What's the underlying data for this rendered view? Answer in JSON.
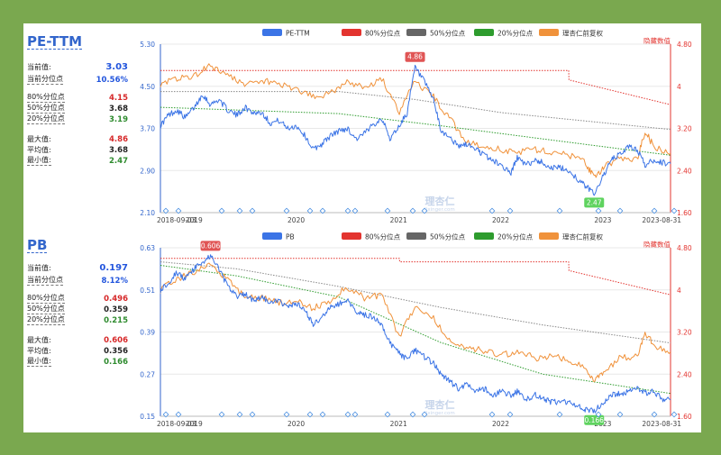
{
  "pe_panel": {
    "title": "PE-TTM",
    "stats": [
      {
        "label": "当前值:",
        "value": "3.03",
        "color": "#2255dd",
        "big": true
      },
      {
        "label": "当前分位点",
        "value": "10.56%",
        "color": "#2255dd",
        "big": false
      },
      {
        "label": "80%分位点",
        "value": "4.15",
        "color": "#d62728",
        "big": false
      },
      {
        "label": "50%分位点",
        "value": "3.68",
        "color": "#222222",
        "big": false
      },
      {
        "label": "20%分位点",
        "value": "3.19",
        "color": "#2e8b2e",
        "big": false
      },
      {
        "label": "最大值:",
        "value": "4.86",
        "color": "#d62728",
        "big": false
      },
      {
        "label": "平均值:",
        "value": "3.68",
        "color": "#222222",
        "big": false
      },
      {
        "label": "最小值:",
        "value": "2.47",
        "color": "#2e8b2e",
        "big": false
      }
    ]
  },
  "pb_panel": {
    "title": "PB",
    "stats": [
      {
        "label": "当前值:",
        "value": "0.197",
        "color": "#2255dd",
        "big": true
      },
      {
        "label": "当前分位点",
        "value": "8.12%",
        "color": "#2255dd",
        "big": false
      },
      {
        "label": "80%分位点",
        "value": "0.496",
        "color": "#d62728",
        "big": false
      },
      {
        "label": "50%分位点",
        "value": "0.359",
        "color": "#222222",
        "big": false
      },
      {
        "label": "20%分位点",
        "value": "0.215",
        "color": "#2e8b2e",
        "big": false
      },
      {
        "label": "最大值:",
        "value": "0.606",
        "color": "#d62728",
        "big": false
      },
      {
        "label": "平均值:",
        "value": "0.356",
        "color": "#222222",
        "big": false
      },
      {
        "label": "最小值:",
        "value": "0.166",
        "color": "#2e8b2e",
        "big": false
      }
    ]
  },
  "colors": {
    "main": "#3b74e6",
    "p80": "#e3342f",
    "p50": "#666666",
    "p20": "#2e9c2e",
    "price": "#f0923b",
    "axis_left": "#3366cc",
    "axis_right": "#e3342f",
    "marker_max": "#e05555",
    "marker_min": "#5fd35f"
  },
  "chart_data": [
    {
      "type": "line",
      "title": "",
      "legend": [
        "PE-TTM",
        "80%分位点",
        "50%分位点",
        "20%分位点",
        "理杏仁前复权"
      ],
      "legend_position": "top",
      "hidden_label": "隐藏数值",
      "watermark": "理杏仁",
      "watermark_sub": "lixinger.com",
      "x_range": [
        "2018-09-03",
        "2023-08-31"
      ],
      "x_tick_labels": [
        "2018-09-03",
        "2019",
        "2020",
        "2021",
        "2022",
        "2023",
        "2023-08-31"
      ],
      "y_left_ticks": [
        "2.10",
        "2.90",
        "3.70",
        "4.50",
        "5.30"
      ],
      "y_left_range": [
        2.1,
        5.3
      ],
      "y_right_ticks": [
        "1.60",
        "2.40",
        "3.20",
        "4",
        "4.80"
      ],
      "y_right_range": [
        1.6,
        4.8
      ],
      "max_label": "4.86",
      "min_label": "2.47",
      "series": [
        {
          "name": "PE-TTM",
          "axis": "left",
          "x": [
            "2018-09-03",
            "2018-10-01",
            "2018-11-01",
            "2018-12-01",
            "2019-01-02",
            "2019-02-01",
            "2019-03-01",
            "2019-04-01",
            "2019-05-01",
            "2019-06-03",
            "2019-07-01",
            "2019-08-01",
            "2019-09-02",
            "2019-10-01",
            "2019-11-01",
            "2019-12-02",
            "2020-01-02",
            "2020-02-03",
            "2020-03-02",
            "2020-04-01",
            "2020-05-01",
            "2020-06-01",
            "2020-07-01",
            "2020-08-03",
            "2020-09-01",
            "2020-10-09",
            "2020-11-02",
            "2020-12-01",
            "2021-01-04",
            "2021-02-01",
            "2021-03-01",
            "2021-04-01",
            "2021-05-06",
            "2021-06-01",
            "2021-07-01",
            "2021-08-02",
            "2021-09-01",
            "2021-10-08",
            "2021-11-01",
            "2021-12-01",
            "2022-01-04",
            "2022-02-07",
            "2022-03-01",
            "2022-04-01",
            "2022-05-05",
            "2022-06-01",
            "2022-07-01",
            "2022-08-01",
            "2022-09-01",
            "2022-10-10",
            "2022-11-01",
            "2022-12-01",
            "2023-01-03",
            "2023-02-01",
            "2023-03-01",
            "2023-04-03",
            "2023-05-04",
            "2023-06-01",
            "2023-07-03",
            "2023-08-01",
            "2023-08-31"
          ],
          "values": [
            3.75,
            3.95,
            4.05,
            3.9,
            4.1,
            4.35,
            4.15,
            4.25,
            4.05,
            3.95,
            4.1,
            4.0,
            4.0,
            3.8,
            3.85,
            3.7,
            3.75,
            3.55,
            3.3,
            3.4,
            3.55,
            3.65,
            3.7,
            3.5,
            3.6,
            3.8,
            3.9,
            3.5,
            3.75,
            4.0,
            4.86,
            4.6,
            4.25,
            3.65,
            3.55,
            3.35,
            3.4,
            3.3,
            3.2,
            3.1,
            3.0,
            2.85,
            3.15,
            3.0,
            3.1,
            3.05,
            2.95,
            2.95,
            2.9,
            2.7,
            2.6,
            2.47,
            2.8,
            3.1,
            3.2,
            3.35,
            3.3,
            3.0,
            3.1,
            3.05,
            3.03
          ]
        },
        {
          "name": "80%分位点",
          "axis": "left",
          "x": [
            "2018-09-03",
            "2022-09-01",
            "2022-09-02",
            "2023-08-31"
          ],
          "values": [
            4.8,
            4.8,
            4.62,
            4.15
          ]
        },
        {
          "name": "50%分位点",
          "axis": "left",
          "x": [
            "2018-09-03",
            "2020-06-01",
            "2021-03-01",
            "2022-01-04",
            "2023-08-31"
          ],
          "values": [
            4.4,
            4.4,
            4.25,
            4.0,
            3.68
          ]
        },
        {
          "name": "20%分位点",
          "axis": "left",
          "x": [
            "2018-09-03",
            "2020-06-01",
            "2021-06-01",
            "2022-06-01",
            "2023-08-31"
          ],
          "values": [
            4.1,
            3.98,
            3.75,
            3.5,
            3.19
          ]
        },
        {
          "name": "理杏仁前复权",
          "axis": "right",
          "x": [
            "2018-09-03",
            "2018-11-01",
            "2019-01-02",
            "2019-03-01",
            "2019-05-01",
            "2019-07-01",
            "2019-09-02",
            "2019-11-01",
            "2020-01-02",
            "2020-03-02",
            "2020-05-01",
            "2020-07-01",
            "2020-09-01",
            "2020-11-02",
            "2021-01-04",
            "2021-03-01",
            "2021-05-06",
            "2021-07-01",
            "2021-09-01",
            "2021-11-01",
            "2022-01-04",
            "2022-03-01",
            "2022-05-05",
            "2022-07-01",
            "2022-09-01",
            "2022-11-01",
            "2022-12-01",
            "2023-01-03",
            "2023-03-01",
            "2023-05-04",
            "2023-06-01",
            "2023-07-03",
            "2023-08-31"
          ],
          "values": [
            4.05,
            4.15,
            4.2,
            4.4,
            4.2,
            4.05,
            4.1,
            4.05,
            3.95,
            3.8,
            3.85,
            4.1,
            3.95,
            4.15,
            3.5,
            4.1,
            3.8,
            3.4,
            2.95,
            2.85,
            2.8,
            2.75,
            2.8,
            2.75,
            2.7,
            2.55,
            2.25,
            2.45,
            2.65,
            2.6,
            3.15,
            2.85,
            2.72
          ]
        }
      ]
    },
    {
      "type": "line",
      "title": "",
      "legend": [
        "PB",
        "80%分位点",
        "50%分位点",
        "20%分位点",
        "理杏仁前复权"
      ],
      "legend_position": "top",
      "hidden_label": "隐藏数值",
      "watermark": "理杏仁",
      "watermark_sub": "lixinger.com",
      "x_range": [
        "2018-09-03",
        "2023-08-31"
      ],
      "x_tick_labels": [
        "2018-09-03",
        "2019",
        "2020",
        "2021",
        "2022",
        "2023",
        "2023-08-31"
      ],
      "y_left_ticks": [
        "0.15",
        "0.27",
        "0.39",
        "0.51",
        "0.63"
      ],
      "y_left_range": [
        0.15,
        0.63
      ],
      "y_right_ticks": [
        "1.60",
        "2.40",
        "3.20",
        "4",
        "4.80"
      ],
      "y_right_range": [
        1.6,
        4.8
      ],
      "max_label": "0.606",
      "min_label": "0.166",
      "series": [
        {
          "name": "PB",
          "axis": "left",
          "x": [
            "2018-09-03",
            "2018-10-01",
            "2018-11-01",
            "2018-12-01",
            "2019-01-02",
            "2019-02-01",
            "2019-03-01",
            "2019-04-01",
            "2019-05-01",
            "2019-06-03",
            "2019-07-01",
            "2019-08-01",
            "2019-09-02",
            "2019-10-01",
            "2019-11-01",
            "2019-12-02",
            "2020-01-02",
            "2020-02-03",
            "2020-03-02",
            "2020-04-01",
            "2020-05-01",
            "2020-06-01",
            "2020-07-01",
            "2020-08-03",
            "2020-09-01",
            "2020-10-09",
            "2020-11-02",
            "2020-12-01",
            "2021-01-04",
            "2021-02-01",
            "2021-03-01",
            "2021-04-01",
            "2021-05-06",
            "2021-06-01",
            "2021-07-01",
            "2021-08-02",
            "2021-09-01",
            "2021-10-08",
            "2021-11-01",
            "2021-12-01",
            "2022-01-04",
            "2022-02-07",
            "2022-03-01",
            "2022-04-01",
            "2022-05-05",
            "2022-06-01",
            "2022-07-01",
            "2022-08-01",
            "2022-09-01",
            "2022-10-10",
            "2022-11-01",
            "2022-12-01",
            "2023-01-03",
            "2023-02-01",
            "2023-03-01",
            "2023-04-03",
            "2023-05-04",
            "2023-06-01",
            "2023-07-03",
            "2023-08-01",
            "2023-08-31"
          ],
          "values": [
            0.51,
            0.53,
            0.56,
            0.54,
            0.57,
            0.59,
            0.606,
            0.57,
            0.52,
            0.49,
            0.5,
            0.48,
            0.49,
            0.47,
            0.48,
            0.46,
            0.47,
            0.45,
            0.41,
            0.43,
            0.46,
            0.47,
            0.48,
            0.45,
            0.44,
            0.43,
            0.41,
            0.36,
            0.33,
            0.31,
            0.34,
            0.32,
            0.3,
            0.27,
            0.25,
            0.23,
            0.24,
            0.22,
            0.23,
            0.21,
            0.22,
            0.21,
            0.22,
            0.2,
            0.21,
            0.2,
            0.19,
            0.19,
            0.19,
            0.175,
            0.17,
            0.166,
            0.19,
            0.21,
            0.215,
            0.22,
            0.23,
            0.215,
            0.22,
            0.2,
            0.197
          ]
        },
        {
          "name": "80%分位点",
          "axis": "left",
          "x": [
            "2018-09-03",
            "2021-01-04",
            "2021-01-05",
            "2022-09-01",
            "2022-09-02",
            "2023-08-31"
          ],
          "values": [
            0.6,
            0.6,
            0.59,
            0.59,
            0.565,
            0.496
          ]
        },
        {
          "name": "50%分位点",
          "axis": "left",
          "x": [
            "2018-09-03",
            "2019-06-03",
            "2020-06-01",
            "2021-06-01",
            "2022-06-01",
            "2023-08-31"
          ],
          "values": [
            0.59,
            0.57,
            0.52,
            0.46,
            0.41,
            0.359
          ]
        },
        {
          "name": "20%分位点",
          "axis": "left",
          "x": [
            "2018-09-03",
            "2019-06-03",
            "2020-06-01",
            "2021-06-01",
            "2022-06-01",
            "2023-08-31"
          ],
          "values": [
            0.58,
            0.55,
            0.49,
            0.36,
            0.27,
            0.215
          ]
        },
        {
          "name": "理杏仁前复权",
          "axis": "right",
          "x": [
            "2018-09-03",
            "2018-11-01",
            "2019-01-02",
            "2019-03-01",
            "2019-05-01",
            "2019-07-01",
            "2019-09-02",
            "2019-11-01",
            "2020-01-02",
            "2020-03-02",
            "2020-05-01",
            "2020-07-01",
            "2020-09-01",
            "2020-11-02",
            "2021-01-04",
            "2021-03-01",
            "2021-05-06",
            "2021-07-01",
            "2021-09-01",
            "2021-11-01",
            "2022-01-04",
            "2022-03-01",
            "2022-05-05",
            "2022-07-01",
            "2022-09-01",
            "2022-11-01",
            "2022-12-01",
            "2023-01-03",
            "2023-03-01",
            "2023-05-04",
            "2023-06-01",
            "2023-07-03",
            "2023-08-31"
          ],
          "values": [
            4.0,
            4.2,
            4.35,
            4.5,
            4.2,
            3.85,
            3.85,
            3.75,
            3.8,
            3.65,
            3.8,
            4.05,
            3.85,
            3.9,
            3.1,
            3.7,
            3.45,
            3.05,
            2.9,
            2.85,
            2.75,
            2.85,
            2.7,
            2.75,
            2.65,
            2.55,
            2.25,
            2.45,
            2.7,
            2.75,
            3.2,
            2.95,
            2.82
          ]
        }
      ]
    }
  ]
}
